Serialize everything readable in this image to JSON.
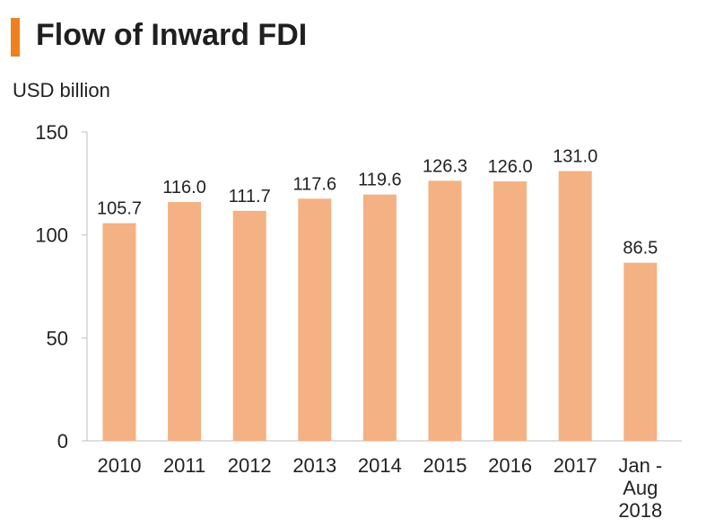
{
  "header": {
    "title": "Flow of Inward FDI",
    "unit_label": "USD billion"
  },
  "colors": {
    "accent": "#f07f1e",
    "bar": "#f4b183",
    "axis": "#bfbfbf",
    "text": "#222222"
  },
  "chart_data": {
    "type": "bar",
    "title": "Flow of Inward FDI",
    "ylabel": "USD billion",
    "xlabel": "",
    "ylim": [
      0,
      150
    ],
    "yticks": [
      0,
      50,
      100,
      150
    ],
    "grid": false,
    "categories": [
      [
        "2010"
      ],
      [
        "2011"
      ],
      [
        "2012"
      ],
      [
        "2013"
      ],
      [
        "2014"
      ],
      [
        "2015"
      ],
      [
        "2016"
      ],
      [
        "2017"
      ],
      [
        "Jan -",
        "Aug",
        "2018"
      ]
    ],
    "values": [
      105.7,
      116.0,
      111.7,
      117.6,
      119.6,
      126.3,
      126.0,
      131.0,
      86.5
    ],
    "value_labels": [
      "105.7",
      "116.0",
      "111.7",
      "117.6",
      "119.6",
      "126.3",
      "126.0",
      "131.0",
      "86.5"
    ]
  }
}
